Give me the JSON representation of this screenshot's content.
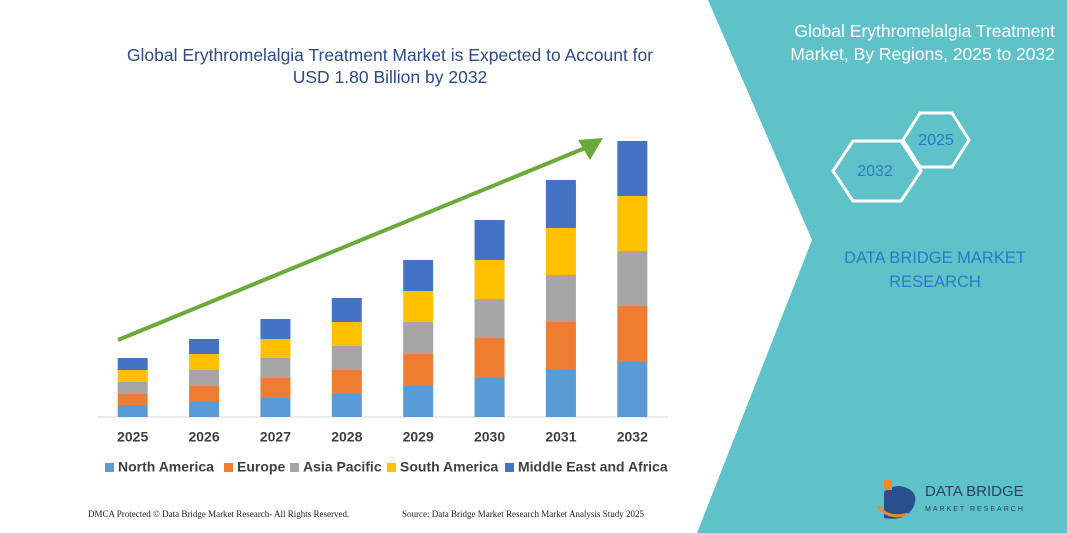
{
  "chart_data": {
    "type": "stacked-bar",
    "title": "Global Erythromelalgia Treatment Market is Expected to Account for USD 1.80 Billion by 2032",
    "categories": [
      "2025",
      "2026",
      "2027",
      "2028",
      "2029",
      "2030",
      "2031",
      "2032"
    ],
    "series": [
      {
        "name": "North America",
        "color": "#5b9bd5",
        "values": [
          12,
          15,
          19,
          23,
          31,
          39,
          47,
          55
        ]
      },
      {
        "name": "Europe",
        "color": "#ed7d31",
        "values": [
          11,
          16,
          20,
          24,
          32,
          40,
          48,
          56
        ]
      },
      {
        "name": "Asia Pacific",
        "color": "#a5a5a5",
        "values": [
          12,
          16,
          20,
          24,
          32,
          39,
          47,
          55
        ]
      },
      {
        "name": "South America",
        "color": "#ffc000",
        "values": [
          12,
          16,
          19,
          24,
          31,
          39,
          47,
          55
        ]
      },
      {
        "name": "Middle East and Africa",
        "color": "#4472c4",
        "values": [
          12,
          15,
          20,
          24,
          31,
          40,
          48,
          55
        ]
      }
    ],
    "ylim": [
      0,
      276
    ],
    "trend_arrow_color": "#6aaa3a"
  },
  "side_panel": {
    "title": "Global Erythromelalgia Treatment Market, By Regions, 2025 to 2032",
    "hexagons": [
      "2032",
      "2025"
    ],
    "brand": "DATA BRIDGE MARKET RESEARCH"
  },
  "footer": {
    "left": "DMCA Protected © Data Bridge Market Research- All Rights Reserved.",
    "right": "Source: Data Bridge Market Research Market Analysis Study 2025"
  },
  "logo": {
    "name": "DATA BRIDGE",
    "tagline": "MARKET RESEARCH"
  }
}
